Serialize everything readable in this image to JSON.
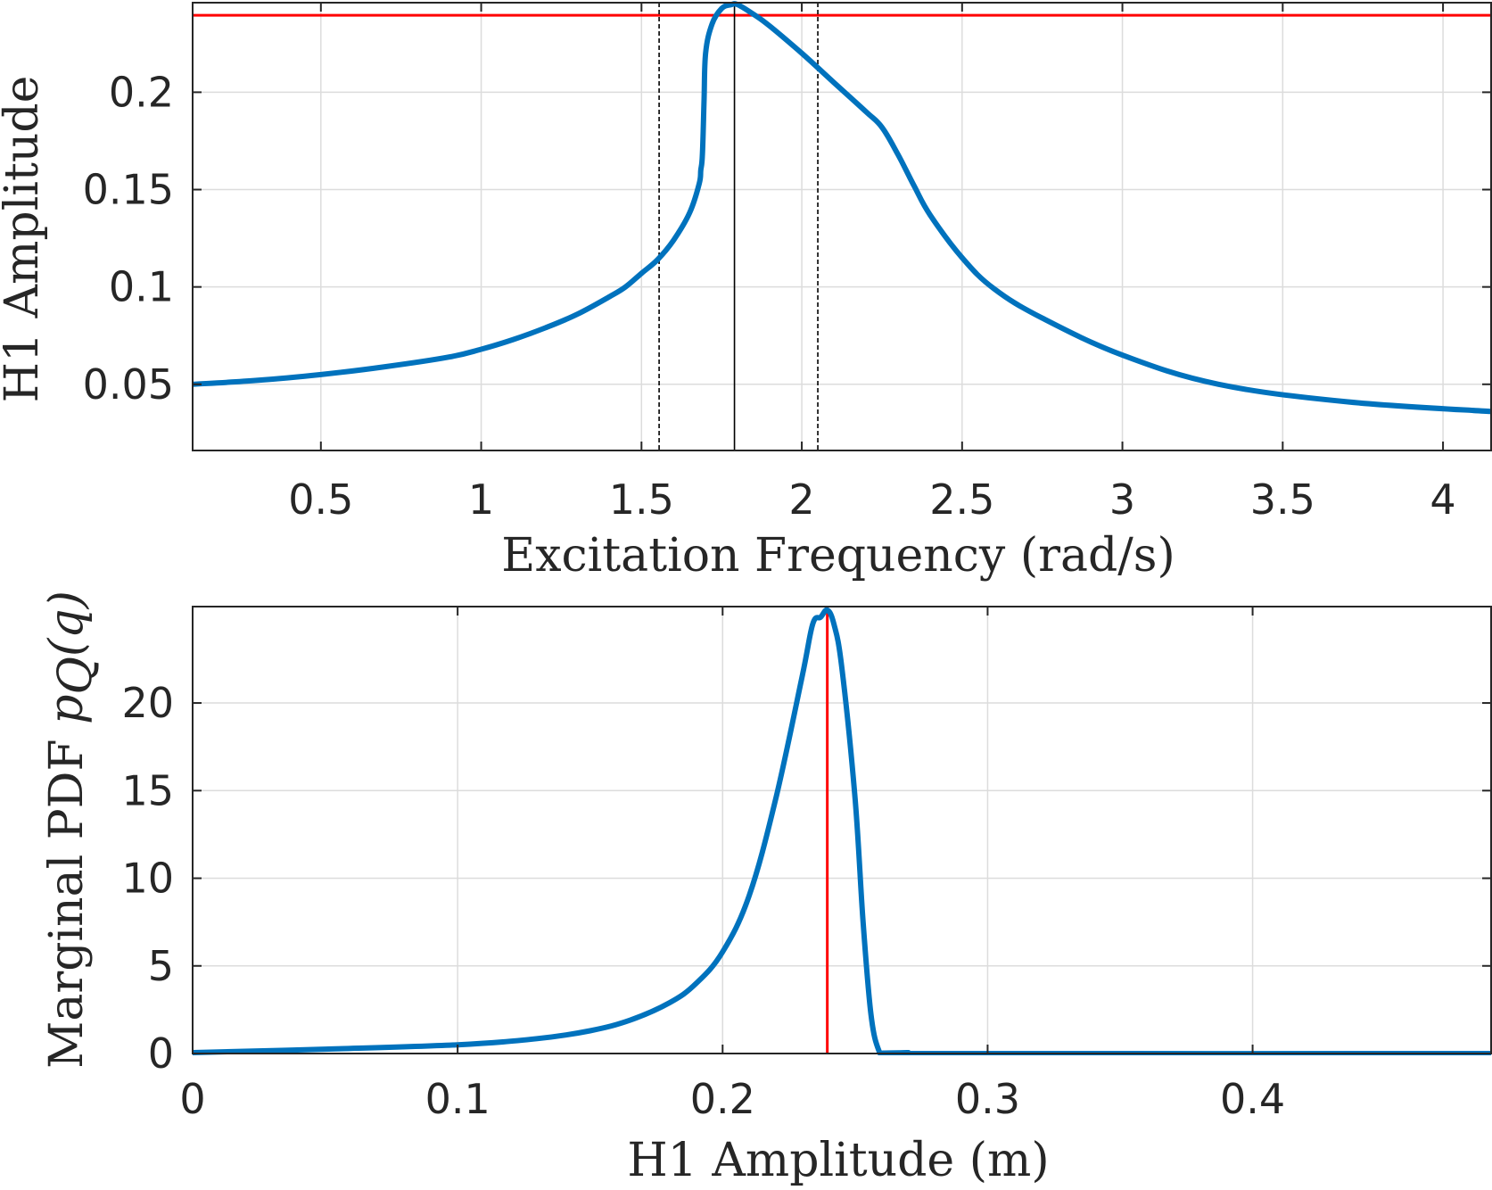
{
  "chart_data": [
    {
      "type": "line",
      "xlabel": "Excitation Frequency (rad/s)",
      "ylabel": "H1 Amplitude",
      "xlim": [
        0.1,
        4.15
      ],
      "ylim": [
        0.016,
        0.246
      ],
      "xticks": [
        0.5,
        1,
        1.5,
        2,
        2.5,
        3,
        3.5,
        4
      ],
      "xtick_labels": [
        "0.5",
        "1",
        "1.5",
        "2",
        "2.5",
        "3",
        "3.5",
        "4"
      ],
      "yticks": [
        0.05,
        0.1,
        0.15,
        0.2
      ],
      "ytick_labels": [
        "0.05",
        "0.1",
        "0.15",
        "0.2"
      ],
      "grid": true,
      "series": [
        {
          "color": "#0072bd",
          "x": [
            0.1,
            0.3,
            0.5,
            0.7,
            0.9,
            1.0,
            1.1,
            1.2,
            1.3,
            1.4,
            1.45,
            1.5,
            1.55,
            1.6,
            1.65,
            1.68,
            1.685,
            1.69,
            1.695,
            1.7,
            1.72,
            1.75,
            1.78,
            1.8,
            1.85,
            1.9,
            2.0,
            2.1,
            2.2,
            2.25,
            2.3,
            2.35,
            2.4,
            2.5,
            2.6,
            2.75,
            3.0,
            3.3,
            3.7,
            4.15
          ],
          "y": [
            0.05,
            0.052,
            0.055,
            0.059,
            0.064,
            0.068,
            0.073,
            0.079,
            0.086,
            0.095,
            0.1,
            0.107,
            0.114,
            0.124,
            0.138,
            0.153,
            0.16,
            0.168,
            0.195,
            0.22,
            0.235,
            0.243,
            0.245,
            0.245,
            0.24,
            0.234,
            0.22,
            0.205,
            0.19,
            0.182,
            0.168,
            0.152,
            0.137,
            0.115,
            0.099,
            0.084,
            0.065,
            0.05,
            0.041,
            0.036
          ]
        }
      ],
      "reference_lines": [
        {
          "orientation": "horizontal",
          "value": 0.2395,
          "color": "#ff0000",
          "style": "solid"
        },
        {
          "orientation": "vertical",
          "value": 1.555,
          "color": "#000000",
          "style": "dashed"
        },
        {
          "orientation": "vertical",
          "value": 1.79,
          "color": "#000000",
          "style": "solid"
        },
        {
          "orientation": "vertical",
          "value": 2.05,
          "color": "#000000",
          "style": "dashed"
        }
      ]
    },
    {
      "type": "line",
      "xlabel": "H1 Amplitude (m)",
      "ylabel": "Marginal PDF",
      "ylabel_math": "p",
      "ylabel_math_sub": "Q",
      "ylabel_math_arg": "(q)",
      "xlim": [
        0,
        0.49
      ],
      "ylim": [
        0,
        25.5
      ],
      "xticks": [
        0,
        0.1,
        0.2,
        0.3,
        0.4
      ],
      "xtick_labels": [
        "0",
        "0.1",
        "0.2",
        "0.3",
        "0.4"
      ],
      "yticks": [
        0,
        5,
        10,
        15,
        20
      ],
      "ytick_labels": [
        "0",
        "5",
        "10",
        "15",
        "20"
      ],
      "grid": true,
      "series": [
        {
          "color": "#0072bd",
          "x": [
            0.0,
            0.05,
            0.1,
            0.13,
            0.15,
            0.165,
            0.18,
            0.19,
            0.2,
            0.21,
            0.22,
            0.23,
            0.234,
            0.237,
            0.2395,
            0.242,
            0.245,
            0.25,
            0.253,
            0.256,
            0.259,
            0.262,
            0.265,
            0.27,
            0.28,
            0.49
          ],
          "y": [
            0.05,
            0.25,
            0.5,
            0.85,
            1.3,
            1.9,
            2.9,
            4.0,
            5.8,
            9.0,
            14.5,
            21.5,
            24.5,
            24.9,
            25.3,
            24.5,
            22.0,
            14.5,
            7.5,
            2.2,
            0.15,
            -0.2,
            0.0,
            0.05,
            0.0,
            0.0
          ]
        }
      ],
      "reference_lines": [
        {
          "orientation": "vertical",
          "value": 0.2395,
          "color": "#ff0000",
          "style": "solid"
        }
      ]
    }
  ]
}
